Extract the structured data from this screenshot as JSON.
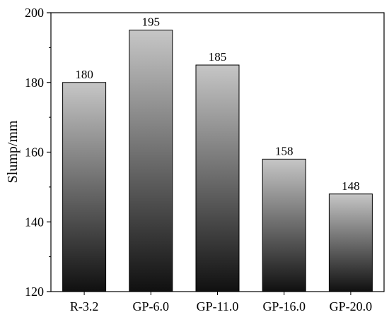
{
  "chart_data": {
    "type": "bar",
    "categories": [
      "R-3.2",
      "GP-6.0",
      "GP-11.0",
      "GP-16.0",
      "GP-20.0"
    ],
    "values": [
      180,
      195,
      185,
      158,
      148
    ],
    "data_labels": [
      "180",
      "195",
      "185",
      "158",
      "148"
    ],
    "ylabel": "Slump/mm",
    "xlabel": "",
    "ylim": [
      120,
      200
    ],
    "yticks": [
      120,
      140,
      160,
      180,
      200
    ],
    "ytick_labels": [
      "120",
      "140",
      "160",
      "180",
      "200"
    ],
    "grid": false,
    "legend": "none",
    "colors": {
      "bar_top": "#c6c6c6",
      "bar_bottom": "#101010",
      "bar_edge": "#000000",
      "axis": "#000000"
    }
  }
}
